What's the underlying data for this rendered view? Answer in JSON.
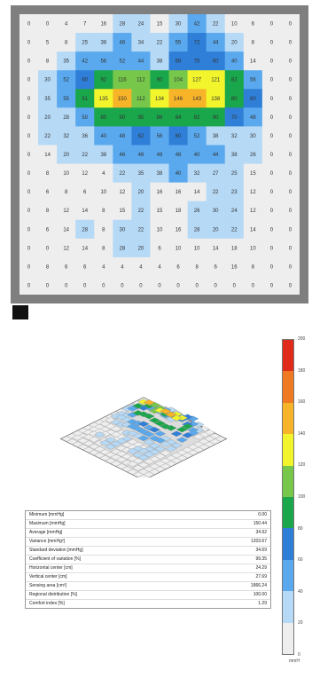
{
  "pressure_map": {
    "scale_ticks": [
      "200",
      "180",
      "160",
      "140",
      "120",
      "100",
      "80",
      "60",
      "40",
      "20",
      "0"
    ],
    "unit_label": "mmH",
    "colors": [
      "#eeeeee",
      "#b6d9f6",
      "#5aa9ee",
      "#2f7fd8",
      "#1aa64b",
      "#76c74a",
      "#f2f52c",
      "#f7b428",
      "#f07a22",
      "#e02a1c"
    ]
  },
  "stats": [
    {
      "label": "Minimum [mmHg]",
      "value": "0.00"
    },
    {
      "label": "Maximum [mmHg]",
      "value": "150.44"
    },
    {
      "label": "Average [mmHg]",
      "value": "34.92"
    },
    {
      "label": "Variance [mmHg²]",
      "value": "1203.67"
    },
    {
      "label": "Standard deviation [mmHg]",
      "value": "34.69"
    },
    {
      "label": "Coefficient of variation [%]",
      "value": "99.35"
    },
    {
      "label": "Horizontal center [cm]",
      "value": "24.29"
    },
    {
      "label": "Vertical center [cm]",
      "value": "27.69"
    },
    {
      "label": "Sensing area [cm²]",
      "value": "1866.24"
    },
    {
      "label": "Regional distribution [%]",
      "value": "100.00"
    },
    {
      "label": "Comfort index [%]",
      "value": "1.29"
    }
  ],
  "chart_data": {
    "type": "heatmap",
    "rows": 15,
    "cols": 15,
    "zlim": [
      0,
      200
    ],
    "values": [
      [
        0,
        0,
        4,
        7,
        16,
        28,
        24,
        15,
        30,
        42,
        22,
        10,
        6,
        0,
        0
      ],
      [
        0,
        5,
        8,
        25,
        38,
        46,
        34,
        22,
        55,
        72,
        44,
        20,
        8,
        0,
        0
      ],
      [
        0,
        8,
        35,
        42,
        56,
        52,
        44,
        38,
        68,
        75,
        60,
        40,
        14,
        0,
        0
      ],
      [
        0,
        30,
        52,
        60,
        92,
        116,
        112,
        90,
        104,
        127,
        121,
        82,
        56,
        0,
        0
      ],
      [
        0,
        35,
        55,
        91,
        135,
        150,
        112,
        134,
        146,
        143,
        138,
        80,
        60,
        0,
        0
      ],
      [
        0,
        20,
        28,
        50,
        80,
        90,
        95,
        86,
        84,
        82,
        90,
        70,
        48,
        0,
        0
      ],
      [
        0,
        22,
        32,
        36,
        40,
        48,
        62,
        56,
        60,
        52,
        38,
        32,
        30,
        0,
        0
      ],
      [
        0,
        14,
        20,
        22,
        38,
        46,
        48,
        48,
        48,
        40,
        44,
        38,
        26,
        0,
        0
      ],
      [
        0,
        8,
        10,
        12,
        4,
        22,
        35,
        38,
        40,
        32,
        27,
        25,
        15,
        0,
        0
      ],
      [
        0,
        6,
        8,
        6,
        10,
        12,
        20,
        16,
        16,
        14,
        22,
        23,
        12,
        0,
        0
      ],
      [
        0,
        8,
        12,
        14,
        8,
        15,
        22,
        15,
        18,
        26,
        30,
        24,
        12,
        0,
        0
      ],
      [
        0,
        6,
        14,
        28,
        8,
        30,
        22,
        10,
        16,
        28,
        20,
        22,
        14,
        0,
        0
      ],
      [
        0,
        0,
        12,
        14,
        8,
        28,
        20,
        6,
        10,
        10,
        14,
        18,
        10,
        0,
        0
      ],
      [
        0,
        8,
        6,
        6,
        4,
        4,
        4,
        4,
        6,
        8,
        6,
        16,
        8,
        0,
        0
      ],
      [
        0,
        0,
        0,
        0,
        0,
        0,
        0,
        0,
        0,
        0,
        0,
        0,
        0,
        0,
        0
      ]
    ]
  }
}
